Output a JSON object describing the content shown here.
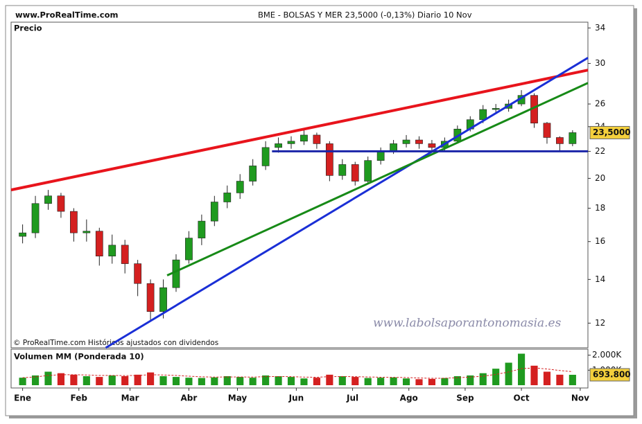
{
  "chart_data": [
    {
      "type": "candlestick",
      "site": "www.ProRealTime.com",
      "title": "BME - BOLSAS Y MER   23,5000 (-0,13%)   Diario  10 Nov",
      "panel_label": "Precio",
      "copyright": "© ProRealTime.com Históricos ajustados con dividendos",
      "watermark": "www.labolsaporantonomasia.es",
      "log_scale": true,
      "up_color": "#1f9a1f",
      "down_color": "#d42020",
      "x": [
        0,
        1,
        2,
        3,
        4,
        5,
        6,
        7,
        8,
        9,
        10,
        11,
        12,
        13,
        14,
        15,
        16,
        17,
        18,
        19,
        20,
        21,
        22,
        23,
        24,
        25,
        26,
        27,
        28,
        29,
        30,
        31,
        32,
        33,
        34,
        35,
        36,
        37,
        38,
        39,
        40,
        41,
        42,
        43
      ],
      "open": [
        16.3,
        16.5,
        18.3,
        18.8,
        17.8,
        16.5,
        16.6,
        15.2,
        15.8,
        14.8,
        13.8,
        12.5,
        13.6,
        15.0,
        16.2,
        17.2,
        18.4,
        19.0,
        19.8,
        20.9,
        22.3,
        22.6,
        22.8,
        23.3,
        22.6,
        20.2,
        21.0,
        19.8,
        21.3,
        22.0,
        22.6,
        22.9,
        22.6,
        22.3,
        22.8,
        23.8,
        24.6,
        25.5,
        25.6,
        26.0,
        26.8,
        24.3,
        23.1,
        22.6
      ],
      "high": [
        17.0,
        18.8,
        19.2,
        19.0,
        18.0,
        17.3,
        16.8,
        16.4,
        16.1,
        15.0,
        14.0,
        14.0,
        15.3,
        16.6,
        17.6,
        18.8,
        19.5,
        20.3,
        21.4,
        22.8,
        23.1,
        23.2,
        23.7,
        23.5,
        22.8,
        21.4,
        21.2,
        21.6,
        22.3,
        22.9,
        23.3,
        23.2,
        22.9,
        23.1,
        24.1,
        24.9,
        25.9,
        26.0,
        26.4,
        27.3,
        27.0,
        24.4,
        23.2,
        23.7
      ],
      "low": [
        15.9,
        16.2,
        17.9,
        17.4,
        16.0,
        16.0,
        14.7,
        14.8,
        14.3,
        13.2,
        12.1,
        12.2,
        13.4,
        14.8,
        15.8,
        16.9,
        18.0,
        18.6,
        19.5,
        20.6,
        21.9,
        22.2,
        22.5,
        22.2,
        19.8,
        19.9,
        19.5,
        19.6,
        21.0,
        21.8,
        22.3,
        22.2,
        21.9,
        22.0,
        22.6,
        23.6,
        24.3,
        25.1,
        25.3,
        25.8,
        23.9,
        22.6,
        22.0,
        22.4
      ],
      "close": [
        16.5,
        18.3,
        18.8,
        17.8,
        16.5,
        16.6,
        15.2,
        15.8,
        14.8,
        13.8,
        12.5,
        13.6,
        15.0,
        16.2,
        17.2,
        18.4,
        19.0,
        19.8,
        20.9,
        22.3,
        22.6,
        22.8,
        23.3,
        22.6,
        20.2,
        21.0,
        19.8,
        21.3,
        22.0,
        22.6,
        22.9,
        22.6,
        22.3,
        22.8,
        23.8,
        24.6,
        25.5,
        25.6,
        26.0,
        26.8,
        24.3,
        23.1,
        22.6,
        23.5
      ],
      "last_close_label": "23,5000",
      "tag_color": "#f3cf3c",
      "lines": [
        {
          "color": "#e8141c",
          "x": [
            -0.9,
            44.2
          ],
          "y": [
            19.2,
            29.3
          ]
        },
        {
          "color": "#1a2fd6",
          "x": [
            6.5,
            44.2
          ],
          "y": [
            11.0,
            30.6
          ]
        },
        {
          "color": "#178a17",
          "x": [
            11.3,
            44.2
          ],
          "y": [
            14.2,
            28.0
          ]
        },
        {
          "color": "#1a24a8",
          "x": [
            19.5,
            44.2
          ],
          "y": [
            22.0,
            22.0
          ]
        }
      ],
      "xlim": [
        -0.9,
        44.2
      ],
      "xticks": [
        {
          "value": 0,
          "label": "Ene"
        },
        {
          "value": 4.4,
          "label": "Feb"
        },
        {
          "value": 8.4,
          "label": "Mar"
        },
        {
          "value": 13,
          "label": "Abr"
        },
        {
          "value": 16.8,
          "label": "May"
        },
        {
          "value": 21.4,
          "label": "Jun"
        },
        {
          "value": 25.8,
          "label": "Jul"
        },
        {
          "value": 30.2,
          "label": "Ago"
        },
        {
          "value": 34.6,
          "label": "Sep"
        },
        {
          "value": 39,
          "label": "Oct"
        },
        {
          "value": 43.6,
          "label": "Nov"
        }
      ],
      "ylim": [
        11,
        34.7
      ],
      "yticks": [
        12,
        14,
        16,
        18,
        20,
        22,
        24,
        26,
        30,
        34
      ]
    },
    {
      "type": "bar",
      "title": "Volumen MM (Ponderada 10)",
      "title_color": "#d42020",
      "ma_color": "#d42020",
      "values": [
        500,
        650,
        900,
        800,
        700,
        600,
        550,
        650,
        600,
        700,
        850,
        600,
        550,
        500,
        480,
        520,
        600,
        550,
        500,
        650,
        600,
        550,
        450,
        500,
        700,
        600,
        550,
        480,
        500,
        520,
        450,
        400,
        420,
        480,
        600,
        650,
        800,
        1100,
        1500,
        2100,
        1300,
        900,
        700,
        693.8
      ],
      "ma": [
        500,
        550,
        650,
        700,
        700,
        680,
        650,
        650,
        640,
        650,
        700,
        680,
        650,
        600,
        560,
        540,
        550,
        550,
        540,
        570,
        580,
        570,
        540,
        530,
        570,
        580,
        570,
        550,
        530,
        525,
        510,
        480,
        460,
        465,
        500,
        540,
        600,
        720,
        880,
        1100,
        1150,
        1080,
        980,
        900
      ],
      "last_value_label": "693.800",
      "ylim": [
        0,
        2400
      ],
      "yticks": [
        {
          "value": 1000,
          "label": "1.000K"
        },
        {
          "value": 2000,
          "label": "2.000K"
        }
      ]
    }
  ]
}
